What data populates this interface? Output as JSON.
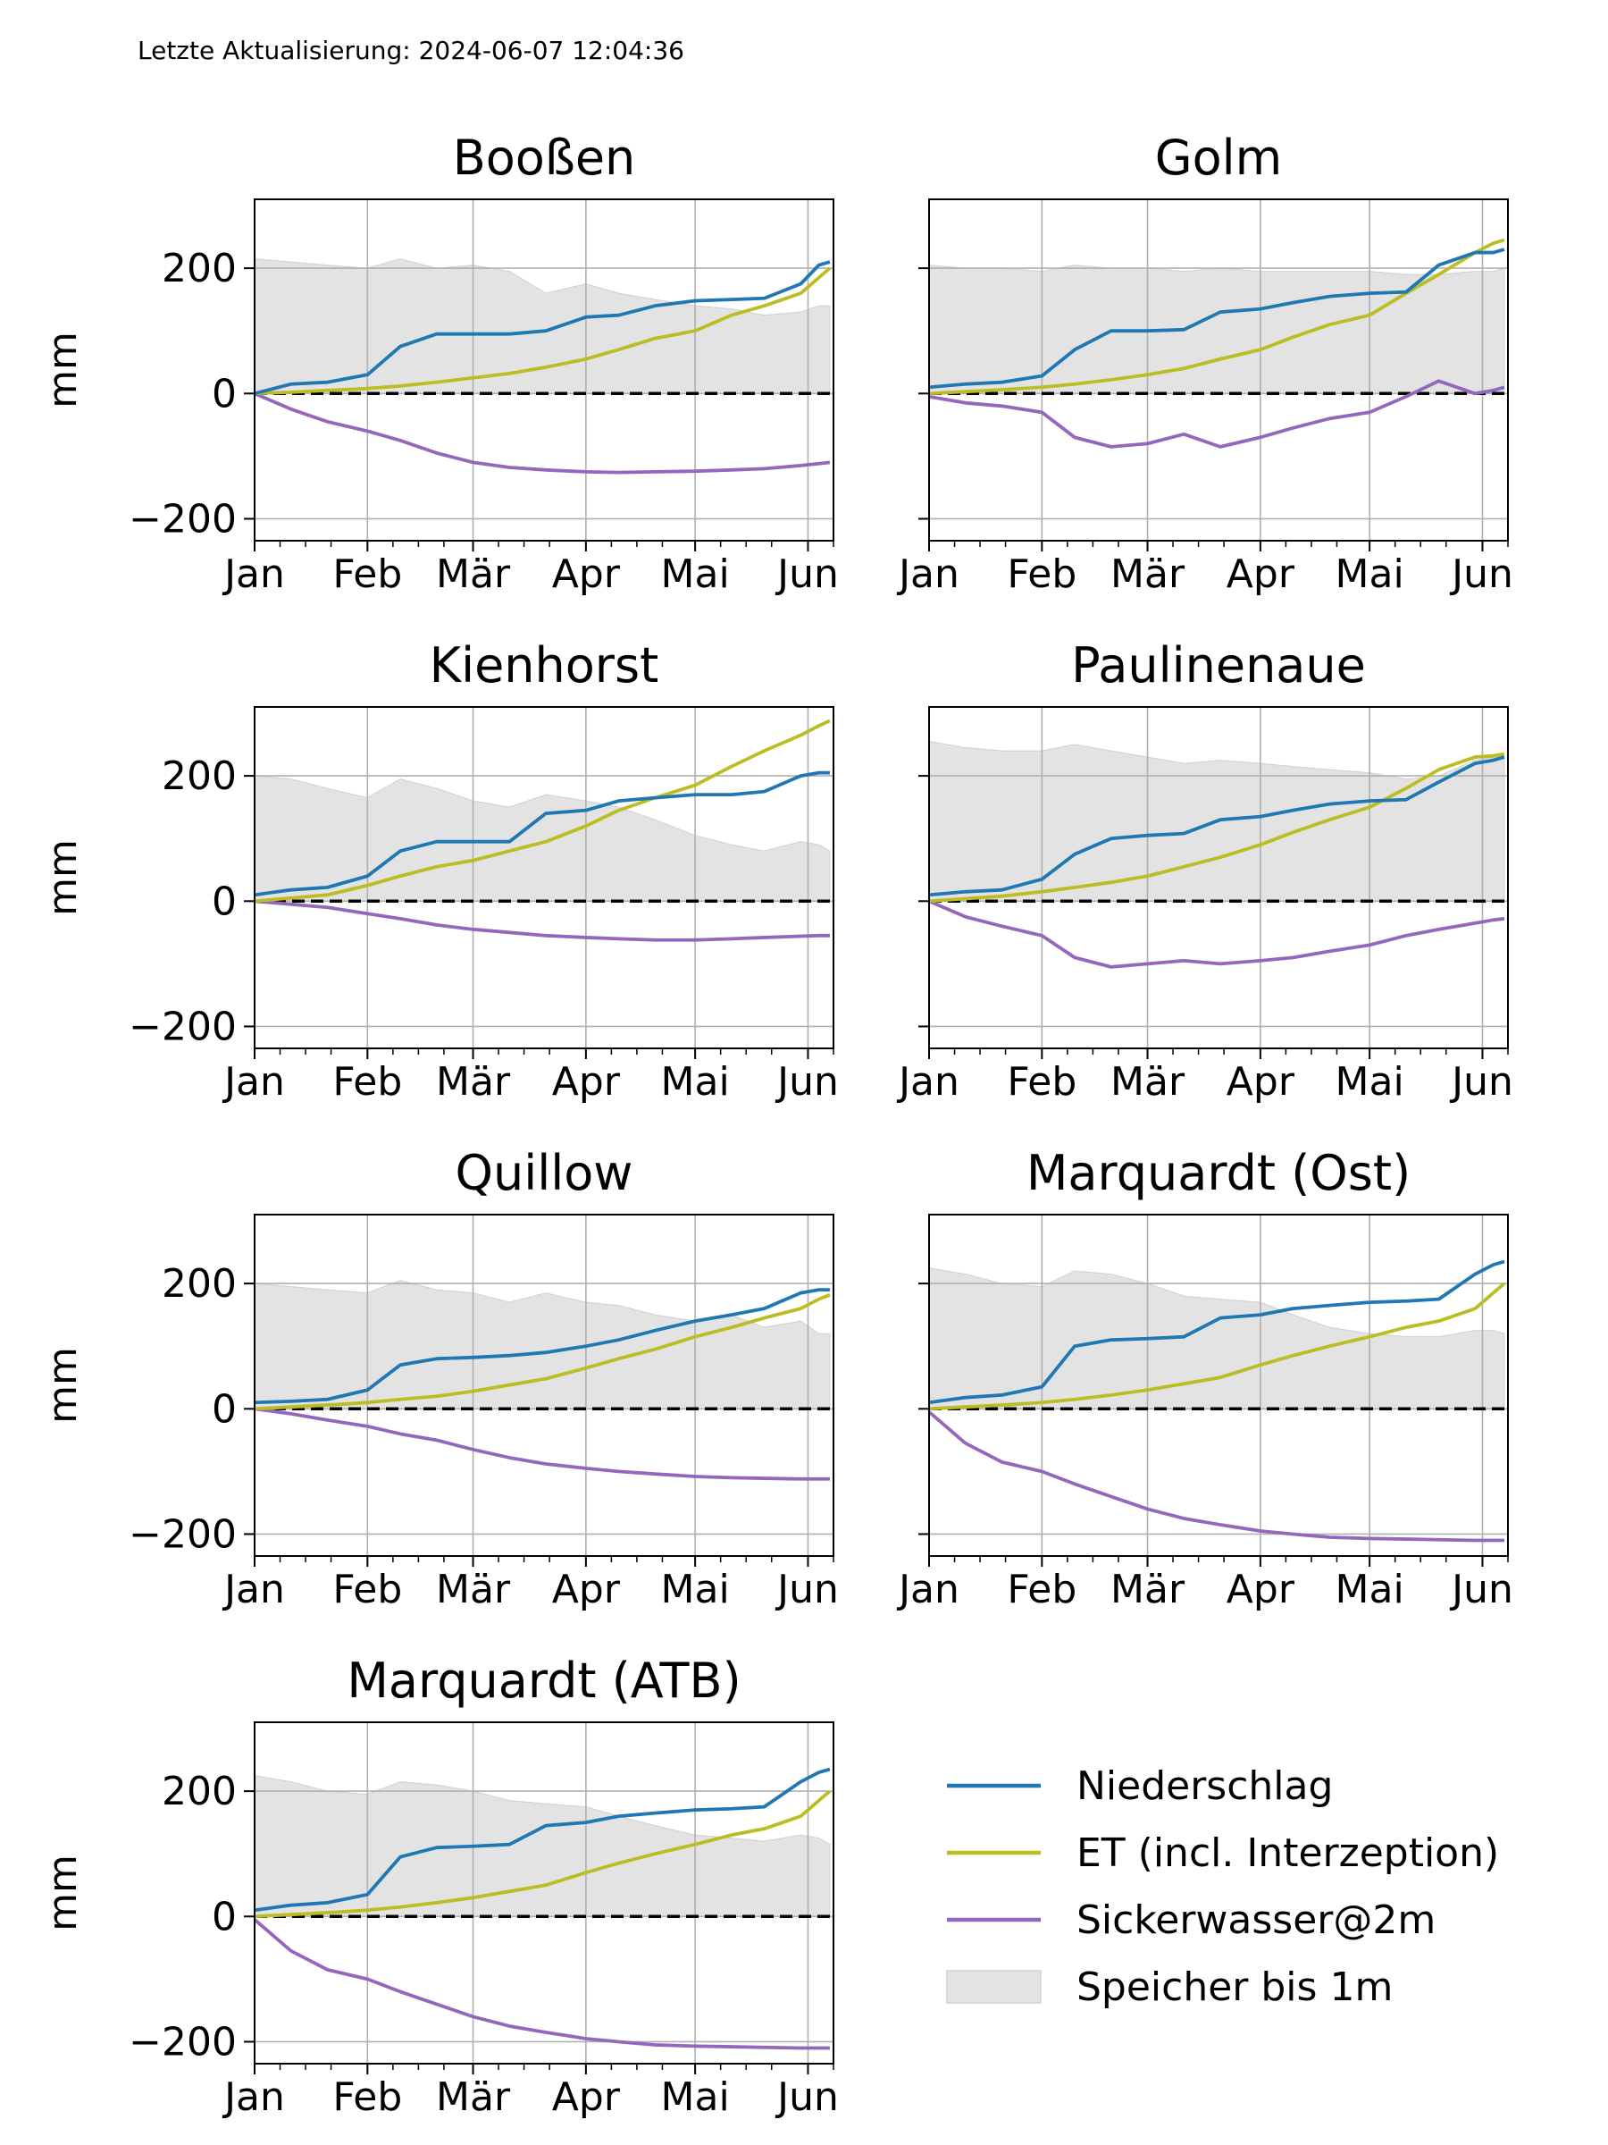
{
  "header": {
    "updated": "Letzte Aktualisierung: 2024-06-07 12:04:36"
  },
  "colors": {
    "precip": "#1f77b4",
    "et": "#bcbd22",
    "seepage": "#9467bd",
    "storage": "#e3e3e3"
  },
  "legend": {
    "items": [
      {
        "label": "Niederschlag",
        "kind": "line",
        "color": "#1f77b4"
      },
      {
        "label": "ET (incl. Interzeption)",
        "kind": "line",
        "color": "#bcbd22"
      },
      {
        "label": "Sickerwasser@2m",
        "kind": "line",
        "color": "#9467bd"
      },
      {
        "label": "Speicher bis 1m",
        "kind": "patch",
        "color": "#e3e3e3"
      }
    ]
  },
  "chart_data": [
    {
      "type": "line",
      "title": "Booßen",
      "ylabel": "mm",
      "xticks": [
        "Jan",
        "Feb",
        "Mär",
        "Apr",
        "Mai",
        "Jun"
      ],
      "yticks": [
        "200",
        "0",
        "−200"
      ],
      "xlim": [
        0,
        159
      ],
      "ylim": [
        -235,
        310
      ],
      "grid": true,
      "zero_line": "dashed",
      "x": [
        0,
        10,
        20,
        31,
        40,
        50,
        60,
        70,
        80,
        91,
        100,
        110,
        121,
        131,
        140,
        150,
        155,
        158
      ],
      "series": [
        {
          "key": "storage",
          "values": [
            215,
            210,
            205,
            200,
            215,
            200,
            205,
            195,
            160,
            175,
            160,
            150,
            140,
            135,
            125,
            130,
            140,
            140
          ]
        },
        {
          "key": "precip",
          "values": [
            0,
            15,
            18,
            30,
            75,
            95,
            95,
            95,
            100,
            122,
            125,
            140,
            148,
            150,
            152,
            175,
            205,
            210
          ]
        },
        {
          "key": "et",
          "values": [
            0,
            2,
            5,
            8,
            12,
            18,
            25,
            32,
            42,
            55,
            70,
            88,
            100,
            125,
            140,
            160,
            185,
            200
          ]
        },
        {
          "key": "seepage",
          "values": [
            0,
            -25,
            -45,
            -60,
            -75,
            -95,
            -110,
            -118,
            -122,
            -125,
            -126,
            -125,
            -124,
            -122,
            -120,
            -115,
            -112,
            -110
          ]
        }
      ]
    },
    {
      "type": "line",
      "title": "Golm",
      "ylabel": "",
      "xticks": [
        "Jan",
        "Feb",
        "Mär",
        "Apr",
        "Mai",
        "Jun"
      ],
      "yticks": [],
      "xlim": [
        0,
        159
      ],
      "ylim": [
        -235,
        310
      ],
      "grid": true,
      "zero_line": "dashed",
      "x": [
        0,
        10,
        20,
        31,
        40,
        50,
        60,
        70,
        80,
        91,
        100,
        110,
        121,
        131,
        140,
        150,
        155,
        158
      ],
      "series": [
        {
          "key": "storage",
          "values": [
            205,
            200,
            200,
            195,
            205,
            200,
            200,
            195,
            200,
            195,
            195,
            195,
            195,
            190,
            190,
            195,
            195,
            200
          ]
        },
        {
          "key": "precip",
          "values": [
            10,
            15,
            18,
            28,
            70,
            100,
            100,
            102,
            130,
            135,
            145,
            155,
            160,
            162,
            205,
            225,
            225,
            230
          ]
        },
        {
          "key": "et",
          "values": [
            0,
            3,
            6,
            10,
            15,
            22,
            30,
            40,
            55,
            70,
            90,
            110,
            125,
            160,
            190,
            225,
            240,
            245
          ]
        },
        {
          "key": "seepage",
          "values": [
            -5,
            -15,
            -20,
            -30,
            -70,
            -85,
            -80,
            -65,
            -85,
            -70,
            -55,
            -40,
            -30,
            -5,
            20,
            0,
            5,
            10
          ]
        }
      ]
    },
    {
      "type": "line",
      "title": "Kienhorst",
      "ylabel": "mm",
      "xticks": [
        "Jan",
        "Feb",
        "Mär",
        "Apr",
        "Mai",
        "Jun"
      ],
      "yticks": [
        "200",
        "0",
        "−200"
      ],
      "xlim": [
        0,
        159
      ],
      "ylim": [
        -235,
        310
      ],
      "grid": true,
      "zero_line": "dashed",
      "x": [
        0,
        10,
        20,
        31,
        40,
        50,
        60,
        70,
        80,
        91,
        100,
        110,
        121,
        131,
        140,
        150,
        155,
        158
      ],
      "series": [
        {
          "key": "storage",
          "values": [
            200,
            195,
            180,
            165,
            195,
            180,
            160,
            150,
            170,
            160,
            150,
            130,
            105,
            90,
            80,
            95,
            90,
            80
          ]
        },
        {
          "key": "precip",
          "values": [
            10,
            18,
            22,
            40,
            80,
            95,
            95,
            95,
            140,
            145,
            160,
            165,
            170,
            170,
            175,
            200,
            205,
            205
          ]
        },
        {
          "key": "et",
          "values": [
            0,
            5,
            10,
            25,
            40,
            55,
            65,
            80,
            95,
            120,
            145,
            165,
            185,
            215,
            240,
            265,
            280,
            288
          ]
        },
        {
          "key": "seepage",
          "values": [
            0,
            -5,
            -10,
            -20,
            -28,
            -38,
            -45,
            -50,
            -55,
            -58,
            -60,
            -62,
            -62,
            -60,
            -58,
            -56,
            -55,
            -55
          ]
        }
      ]
    },
    {
      "type": "line",
      "title": "Paulinenaue",
      "ylabel": "",
      "xticks": [
        "Jan",
        "Feb",
        "Mär",
        "Apr",
        "Mai",
        "Jun"
      ],
      "yticks": [],
      "xlim": [
        0,
        159
      ],
      "ylim": [
        -235,
        310
      ],
      "grid": true,
      "zero_line": "dashed",
      "x": [
        0,
        10,
        20,
        31,
        40,
        50,
        60,
        70,
        80,
        91,
        100,
        110,
        121,
        131,
        140,
        150,
        155,
        158
      ],
      "series": [
        {
          "key": "storage",
          "values": [
            255,
            245,
            240,
            240,
            250,
            240,
            230,
            220,
            225,
            220,
            215,
            210,
            205,
            195,
            200,
            225,
            230,
            230
          ]
        },
        {
          "key": "precip",
          "values": [
            10,
            15,
            18,
            35,
            75,
            100,
            105,
            108,
            130,
            135,
            145,
            155,
            160,
            162,
            190,
            220,
            225,
            230
          ]
        },
        {
          "key": "et",
          "values": [
            0,
            4,
            8,
            15,
            22,
            30,
            40,
            55,
            70,
            90,
            110,
            130,
            150,
            180,
            210,
            230,
            232,
            235
          ]
        },
        {
          "key": "seepage",
          "values": [
            0,
            -25,
            -40,
            -55,
            -90,
            -105,
            -100,
            -95,
            -100,
            -95,
            -90,
            -80,
            -70,
            -55,
            -45,
            -35,
            -30,
            -28
          ]
        }
      ]
    },
    {
      "type": "line",
      "title": "Quillow",
      "ylabel": "mm",
      "xticks": [
        "Jan",
        "Feb",
        "Mär",
        "Apr",
        "Mai",
        "Jun"
      ],
      "yticks": [
        "200",
        "0",
        "−200"
      ],
      "xlim": [
        0,
        159
      ],
      "ylim": [
        -235,
        310
      ],
      "grid": true,
      "zero_line": "dashed",
      "x": [
        0,
        10,
        20,
        31,
        40,
        50,
        60,
        70,
        80,
        91,
        100,
        110,
        121,
        131,
        140,
        150,
        155,
        158
      ],
      "series": [
        {
          "key": "storage",
          "values": [
            200,
            195,
            190,
            185,
            205,
            190,
            185,
            170,
            185,
            170,
            165,
            150,
            140,
            150,
            130,
            140,
            120,
            120
          ]
        },
        {
          "key": "precip",
          "values": [
            10,
            12,
            15,
            30,
            70,
            80,
            82,
            85,
            90,
            100,
            110,
            125,
            140,
            150,
            160,
            185,
            190,
            190
          ]
        },
        {
          "key": "et",
          "values": [
            0,
            3,
            6,
            10,
            15,
            20,
            28,
            38,
            48,
            65,
            80,
            95,
            115,
            130,
            145,
            160,
            175,
            182
          ]
        },
        {
          "key": "seepage",
          "values": [
            0,
            -8,
            -18,
            -28,
            -40,
            -50,
            -65,
            -78,
            -88,
            -95,
            -100,
            -104,
            -108,
            -110,
            -111,
            -112,
            -112,
            -112
          ]
        }
      ]
    },
    {
      "type": "line",
      "title": "Marquardt (Ost)",
      "ylabel": "",
      "xticks": [
        "Jan",
        "Feb",
        "Mär",
        "Apr",
        "Mai",
        "Jun"
      ],
      "yticks": [],
      "xlim": [
        0,
        159
      ],
      "ylim": [
        -235,
        310
      ],
      "grid": true,
      "zero_line": "dashed",
      "x": [
        0,
        10,
        20,
        31,
        40,
        50,
        60,
        70,
        80,
        91,
        100,
        110,
        121,
        131,
        140,
        150,
        155,
        158
      ],
      "series": [
        {
          "key": "storage",
          "values": [
            225,
            215,
            200,
            195,
            220,
            215,
            200,
            180,
            175,
            170,
            150,
            130,
            120,
            115,
            115,
            125,
            125,
            120
          ]
        },
        {
          "key": "precip",
          "values": [
            10,
            18,
            22,
            35,
            100,
            110,
            112,
            115,
            145,
            150,
            160,
            165,
            170,
            172,
            175,
            215,
            230,
            235
          ]
        },
        {
          "key": "et",
          "values": [
            0,
            3,
            6,
            10,
            15,
            22,
            30,
            40,
            50,
            70,
            85,
            100,
            115,
            130,
            140,
            160,
            185,
            200
          ]
        },
        {
          "key": "seepage",
          "values": [
            -5,
            -55,
            -85,
            -100,
            -120,
            -140,
            -160,
            -175,
            -185,
            -195,
            -200,
            -205,
            -207,
            -208,
            -209,
            -210,
            -210,
            -210
          ]
        }
      ]
    },
    {
      "type": "line",
      "title": "Marquardt (ATB)",
      "ylabel": "mm",
      "xticks": [
        "Jan",
        "Feb",
        "Mär",
        "Apr",
        "Mai",
        "Jun"
      ],
      "yticks": [
        "200",
        "0",
        "−200"
      ],
      "xlim": [
        0,
        159
      ],
      "ylim": [
        -235,
        310
      ],
      "grid": true,
      "zero_line": "dashed",
      "x": [
        0,
        10,
        20,
        31,
        40,
        50,
        60,
        70,
        80,
        91,
        100,
        110,
        121,
        131,
        140,
        150,
        155,
        158
      ],
      "series": [
        {
          "key": "storage",
          "values": [
            225,
            215,
            200,
            195,
            215,
            210,
            200,
            185,
            180,
            175,
            160,
            145,
            130,
            125,
            120,
            130,
            125,
            115
          ]
        },
        {
          "key": "precip",
          "values": [
            10,
            18,
            22,
            35,
            95,
            110,
            112,
            115,
            145,
            150,
            160,
            165,
            170,
            172,
            175,
            215,
            230,
            235
          ]
        },
        {
          "key": "et",
          "values": [
            0,
            3,
            6,
            10,
            15,
            22,
            30,
            40,
            50,
            70,
            85,
            100,
            115,
            130,
            140,
            160,
            185,
            200
          ]
        },
        {
          "key": "seepage",
          "values": [
            -5,
            -55,
            -85,
            -100,
            -120,
            -140,
            -160,
            -175,
            -185,
            -195,
            -200,
            -205,
            -207,
            -208,
            -209,
            -210,
            -210,
            -210
          ]
        }
      ]
    }
  ]
}
